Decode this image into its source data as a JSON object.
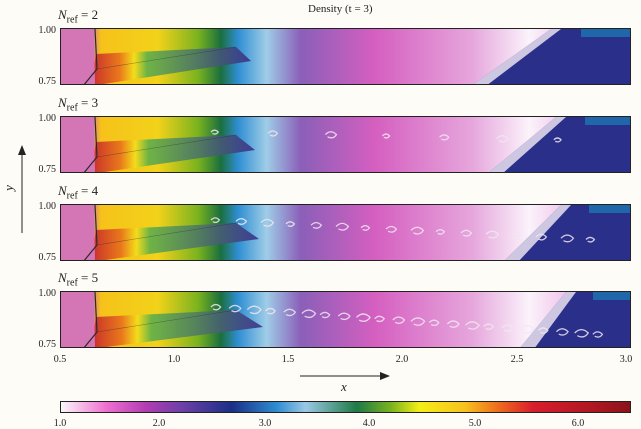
{
  "figure": {
    "title": "Density (t = 3)",
    "y_axis_label": "y",
    "x_axis_label": "x",
    "panels": [
      {
        "n_ref_symbol": "N",
        "n_ref_sub": "ref",
        "n_ref_value": "= 2",
        "ytick_top": "1.00",
        "ytick_bottom": "0.75"
      },
      {
        "n_ref_symbol": "N",
        "n_ref_sub": "ref",
        "n_ref_value": "= 3",
        "ytick_top": "1.00",
        "ytick_bottom": "0.75"
      },
      {
        "n_ref_symbol": "N",
        "n_ref_sub": "ref",
        "n_ref_value": "= 4",
        "ytick_top": "1.00",
        "ytick_bottom": "0.75"
      },
      {
        "n_ref_symbol": "N",
        "n_ref_sub": "ref",
        "n_ref_value": "= 5",
        "ytick_top": "1.00",
        "ytick_bottom": "0.75"
      }
    ],
    "x_ticks": [
      "0.5",
      "1.0",
      "1.5",
      "2.0",
      "2.5",
      "3.0"
    ],
    "colorbar_ticks": [
      "1.0",
      "2.0",
      "3.0",
      "4.0",
      "5.0",
      "6.0"
    ]
  }
}
